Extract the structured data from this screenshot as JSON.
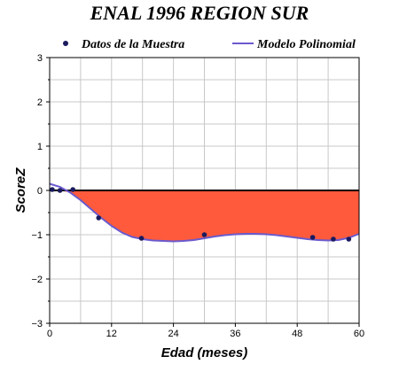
{
  "chart_data": {
    "type": "line",
    "title": "ENAL 1996 REGION SUR",
    "xlabel": "Edad (meses)",
    "ylabel": "ScoreZ",
    "xlim": [
      0,
      60
    ],
    "ylim": [
      -3,
      3
    ],
    "xticks": [
      0,
      12,
      24,
      36,
      48,
      60
    ],
    "yticks": [
      -3,
      -2,
      -1,
      0,
      1,
      2,
      3
    ],
    "grid": true,
    "legend_position": "top",
    "series": [
      {
        "name": "Datos de la Muestra",
        "kind": "scatter",
        "color": "#1a1a5e",
        "x": [
          0.5,
          2,
          4.5,
          9.5,
          17.8,
          30,
          51,
          55,
          58
        ],
        "y": [
          0.02,
          0.0,
          0.02,
          -0.62,
          -1.08,
          -1.0,
          -1.06,
          -1.1,
          -1.1
        ]
      },
      {
        "name": "Modelo Polinomial",
        "kind": "line",
        "color": "#6a5acd",
        "x": [
          0,
          2,
          4,
          6,
          8,
          10,
          12,
          14,
          16,
          18,
          20,
          22,
          24,
          26,
          28,
          30,
          32,
          34,
          36,
          38,
          40,
          42,
          44,
          46,
          48,
          50,
          52,
          54,
          56,
          58,
          60
        ],
        "y": [
          0.15,
          0.08,
          -0.05,
          -0.22,
          -0.42,
          -0.62,
          -0.8,
          -0.95,
          -1.05,
          -1.1,
          -1.13,
          -1.14,
          -1.15,
          -1.14,
          -1.12,
          -1.08,
          -1.04,
          -1.01,
          -0.99,
          -0.98,
          -0.98,
          -0.99,
          -1.01,
          -1.04,
          -1.07,
          -1.1,
          -1.12,
          -1.13,
          -1.12,
          -1.07,
          -0.98
        ]
      }
    ],
    "fill_below_zero_color": "#ff5a3c",
    "zero_line_color": "#000000"
  }
}
